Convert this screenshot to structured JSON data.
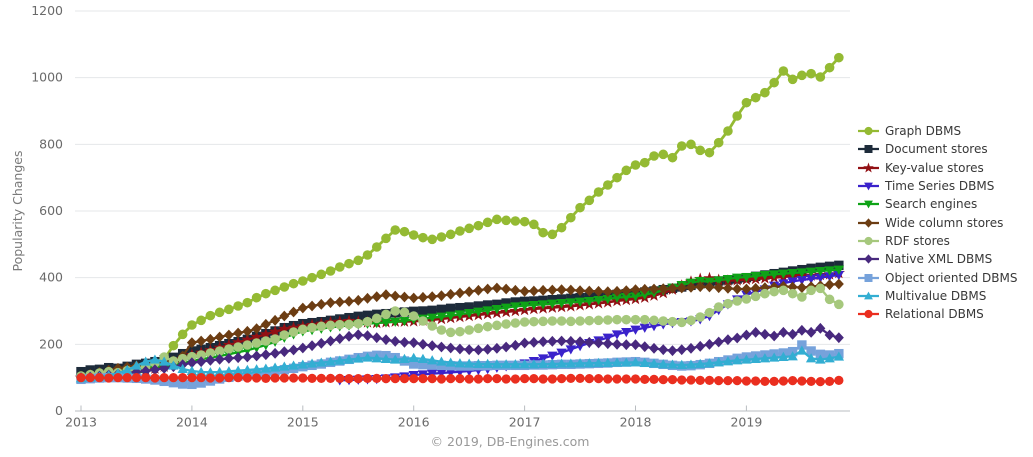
{
  "chart_data": {
    "type": "line",
    "title": "",
    "ylabel": "Popularity Changes",
    "xlabel": "",
    "footer": "© 2019, DB-Engines.com",
    "ylim": [
      0,
      1200
    ],
    "yticks": [
      0,
      200,
      400,
      600,
      800,
      1000,
      1200
    ],
    "x_tick_labels": [
      "2013",
      "2014",
      "2015",
      "2016",
      "2017",
      "2018",
      "2019"
    ],
    "x_start": "2013-01",
    "x_step": "month",
    "n_points": 83,
    "grid": true,
    "legend_position": "right",
    "series": [
      {
        "name": "Graph DBMS",
        "color": "#94BA33",
        "marker": "circle",
        "values": [
          100,
          104,
          109,
          114,
          112,
          118,
          125,
          133,
          141,
          156,
          196,
          230,
          258,
          272,
          286,
          296,
          305,
          315,
          325,
          340,
          352,
          362,
          372,
          382,
          390,
          400,
          410,
          420,
          432,
          442,
          452,
          468,
          492,
          518,
          543,
          538,
          528,
          520,
          515,
          522,
          530,
          540,
          548,
          556,
          566,
          575,
          572,
          570,
          568,
          560,
          535,
          530,
          550,
          580,
          610,
          632,
          657,
          678,
          700,
          722,
          738,
          745,
          765,
          770,
          760,
          795,
          800,
          782,
          775,
          805,
          840,
          885,
          925,
          940,
          955,
          985,
          1020,
          995,
          1007,
          1012,
          1002,
          1030,
          1060
        ]
      },
      {
        "name": "Document stores",
        "color": "#1D2B3A",
        "marker": "square",
        "values": [
          118,
          123,
          125,
          130,
          128,
          134,
          140,
          143,
          148,
          154,
          161,
          172,
          180,
          185,
          190,
          196,
          202,
          208,
          215,
          224,
          232,
          240,
          250,
          256,
          262,
          265,
          268,
          272,
          276,
          280,
          284,
          287,
          290,
          292,
          295,
          297,
          299,
          300,
          302,
          305,
          308,
          310,
          312,
          315,
          318,
          320,
          324,
          327,
          329,
          330,
          332,
          334,
          336,
          338,
          340,
          342,
          345,
          348,
          350,
          352,
          354,
          357,
          360,
          364,
          368,
          372,
          377,
          382,
          386,
          390,
          393,
          396,
          400,
          404,
          408,
          412,
          416,
          420,
          424,
          428,
          431,
          434,
          437
        ]
      },
      {
        "name": "Key-value stores",
        "color": "#921014",
        "marker": "star",
        "values": [
          100,
          103,
          106,
          109,
          112,
          115,
          118,
          122,
          127,
          133,
          142,
          155,
          168,
          175,
          182,
          190,
          198,
          206,
          214,
          222,
          230,
          238,
          246,
          250,
          254,
          258,
          262,
          266,
          268,
          270,
          268,
          266,
          264,
          266,
          268,
          268,
          269,
          271,
          273,
          276,
          279,
          282,
          285,
          288,
          291,
          294,
          297,
          300,
          303,
          306,
          308,
          310,
          312,
          314,
          317,
          320,
          323,
          326,
          330,
          333,
          336,
          340,
          346,
          354,
          364,
          376,
          388,
          396,
          398,
          393,
          391,
          392,
          394,
          396,
          398,
          400,
          402,
          404,
          405,
          406,
          408,
          410,
          414
        ]
      },
      {
        "name": "Time Series DBMS",
        "color": "#3A22CB",
        "marker": "triangle-down",
        "values": [
          null,
          null,
          null,
          null,
          null,
          null,
          null,
          null,
          null,
          null,
          null,
          null,
          null,
          null,
          null,
          null,
          null,
          null,
          null,
          null,
          null,
          null,
          null,
          null,
          null,
          null,
          null,
          null,
          92,
          93,
          94,
          95,
          96,
          98,
          101,
          104,
          108,
          110,
          112,
          114,
          116,
          118,
          120,
          123,
          126,
          130,
          134,
          138,
          143,
          150,
          158,
          166,
          175,
          185,
          195,
          204,
          212,
          220,
          230,
          237,
          244,
          250,
          255,
          260,
          264,
          267,
          269,
          275,
          285,
          303,
          320,
          335,
          349,
          357,
          365,
          376,
          383,
          389,
          393,
          397,
          400,
          404,
          408
        ]
      },
      {
        "name": "Search engines",
        "color": "#0FA317",
        "marker": "triangle-down",
        "values": [
          98,
          100,
          103,
          106,
          109,
          112,
          115,
          119,
          124,
          130,
          137,
          144,
          150,
          155,
          160,
          165,
          170,
          176,
          182,
          190,
          198,
          208,
          220,
          230,
          239,
          243,
          247,
          251,
          254,
          257,
          260,
          262,
          264,
          266,
          268,
          270,
          275,
          277,
          280,
          283,
          286,
          290,
          294,
          298,
          302,
          306,
          310,
          314,
          316,
          318,
          320,
          322,
          324,
          326,
          328,
          330,
          333,
          336,
          340,
          342,
          344,
          349,
          355,
          362,
          370,
          378,
          385,
          390,
          388,
          392,
          396,
          400,
          402,
          405,
          408,
          410,
          412,
          414,
          416,
          418,
          420,
          422,
          424
        ]
      },
      {
        "name": "Wide column stores",
        "color": "#6C3D13",
        "marker": "diamond",
        "values": [
          105,
          110,
          116,
          122,
          128,
          132,
          136,
          140,
          144,
          148,
          150,
          165,
          205,
          210,
          215,
          222,
          228,
          234,
          239,
          247,
          260,
          272,
          285,
          297,
          309,
          315,
          320,
          325,
          327,
          329,
          332,
          338,
          343,
          349,
          345,
          342,
          339,
          341,
          343,
          346,
          350,
          354,
          358,
          362,
          366,
          369,
          366,
          362,
          359,
          360,
          362,
          363,
          364,
          363,
          361,
          360,
          359,
          358,
          359,
          361,
          364,
          365,
          366,
          367,
          368,
          369,
          371,
          373,
          372,
          370,
          368,
          366,
          366,
          368,
          370,
          372,
          374,
          372,
          370,
          373,
          376,
          379,
          381
        ]
      },
      {
        "name": "RDF stores",
        "color": "#A6C87D",
        "marker": "circle",
        "values": [
          105,
          109,
          114,
          118,
          115,
          121,
          126,
          133,
          144,
          162,
          150,
          157,
          163,
          168,
          174,
          180,
          186,
          192,
          198,
          204,
          210,
          216,
          228,
          237,
          245,
          250,
          254,
          257,
          259,
          260,
          262,
          268,
          278,
          290,
          300,
          296,
          285,
          270,
          255,
          243,
          236,
          238,
          243,
          248,
          253,
          257,
          261,
          264,
          267,
          268,
          269,
          270,
          270,
          269,
          270,
          271,
          272,
          273,
          274,
          274,
          274,
          274,
          272,
          270,
          268,
          266,
          272,
          282,
          295,
          312,
          322,
          330,
          336,
          344,
          352,
          358,
          362,
          352,
          342,
          362,
          368,
          335,
          320
        ]
      },
      {
        "name": "Native XML DBMS",
        "color": "#48297E",
        "marker": "diamond",
        "values": [
          100,
          102,
          105,
          108,
          111,
          114,
          117,
          120,
          124,
          128,
          133,
          139,
          145,
          148,
          152,
          155,
          158,
          160,
          162,
          165,
          169,
          173,
          178,
          183,
          189,
          196,
          203,
          210,
          217,
          224,
          229,
          226,
          220,
          214,
          209,
          206,
          205,
          200,
          196,
          192,
          189,
          186,
          184,
          183,
          185,
          188,
          192,
          197,
          204,
          206,
          208,
          209,
          210,
          209,
          208,
          206,
          204,
          202,
          200,
          199,
          199,
          193,
          188,
          184,
          181,
          184,
          188,
          194,
          200,
          207,
          214,
          219,
          228,
          236,
          230,
          225,
          236,
          230,
          242,
          236,
          248,
          228,
          220
        ]
      },
      {
        "name": "Object oriented DBMS",
        "color": "#76A2DB",
        "marker": "square",
        "values": [
          95,
          97,
          99,
          100,
          100,
          99,
          98,
          96,
          93,
          89,
          85,
          81,
          80,
          84,
          90,
          96,
          101,
          105,
          109,
          113,
          116,
          120,
          124,
          128,
          133,
          137,
          141,
          146,
          150,
          155,
          160,
          164,
          167,
          166,
          160,
          150,
          141,
          139,
          138,
          137,
          136,
          135,
          135,
          136,
          136,
          137,
          137,
          137,
          137,
          138,
          138,
          139,
          140,
          140,
          141,
          142,
          143,
          144,
          146,
          147,
          148,
          146,
          143,
          140,
          137,
          135,
          136,
          139,
          143,
          148,
          153,
          158,
          162,
          165,
          168,
          171,
          174,
          178,
          198,
          180,
          170,
          168,
          172
        ]
      },
      {
        "name": "Multivalue DBMS",
        "color": "#33AED2",
        "marker": "triangle-up",
        "values": [
          98,
          100,
          103,
          107,
          113,
          123,
          136,
          148,
          154,
          148,
          136,
          126,
          120,
          117,
          116,
          117,
          119,
          121,
          123,
          125,
          127,
          130,
          133,
          136,
          139,
          142,
          145,
          148,
          151,
          154,
          157,
          160,
          158,
          156,
          154,
          156,
          159,
          156,
          152,
          148,
          145,
          143,
          142,
          141,
          141,
          140,
          140,
          140,
          140,
          140,
          141,
          141,
          142,
          142,
          143,
          143,
          144,
          144,
          145,
          145,
          146,
          144,
          142,
          140,
          139,
          138,
          139,
          141,
          143,
          146,
          149,
          152,
          154,
          156,
          158,
          160,
          162,
          164,
          181,
          158,
          154,
          158,
          163
        ]
      },
      {
        "name": "Relational DBMS",
        "color": "#EA2E1F",
        "marker": "circle",
        "values": [
          100,
          100,
          100,
          99,
          100,
          100,
          100,
          100,
          99,
          100,
          100,
          100,
          100,
          100,
          99,
          99,
          100,
          100,
          99,
          99,
          98,
          99,
          99,
          99,
          99,
          98,
          98,
          98,
          98,
          97,
          97,
          98,
          98,
          97,
          97,
          97,
          97,
          97,
          97,
          96,
          97,
          97,
          96,
          96,
          97,
          97,
          96,
          96,
          97,
          97,
          96,
          96,
          97,
          98,
          98,
          97,
          97,
          96,
          96,
          96,
          96,
          95,
          95,
          94,
          94,
          93,
          93,
          92,
          92,
          91,
          91,
          91,
          90,
          90,
          89,
          89,
          90,
          91,
          90,
          89,
          88,
          89,
          92
        ]
      }
    ]
  }
}
